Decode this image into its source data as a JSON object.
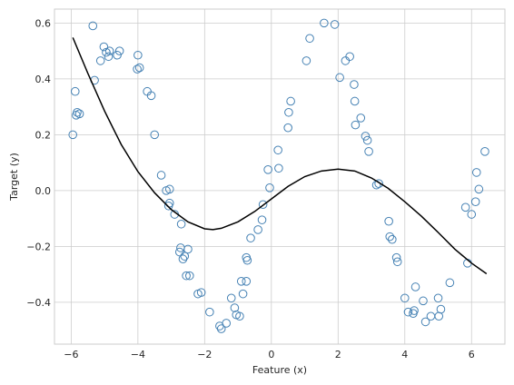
{
  "chart_data": {
    "type": "scatter",
    "title": "",
    "xlabel": "Feature (x)",
    "ylabel": "Target (y)",
    "xlim": [
      -6.5,
      7.0
    ],
    "ylim": [
      -0.55,
      0.65
    ],
    "xticks": [
      -6,
      -4,
      -2,
      0,
      2,
      4,
      6
    ],
    "yticks": [
      -0.4,
      -0.2,
      0.0,
      0.2,
      0.4,
      0.6
    ],
    "xtick_labels": [
      "−6",
      "−4",
      "−2",
      "0",
      "2",
      "4",
      "6"
    ],
    "ytick_labels": [
      "−0.4",
      "−0.2",
      "0.0",
      "0.2",
      "0.4",
      "0.6"
    ],
    "grid": true,
    "legend": "none",
    "colors": {
      "points": "#4682b4",
      "line": "#000000",
      "grid": "#cccccc",
      "frame": "#cccccc"
    },
    "series": [
      {
        "kind": "scatter",
        "marker": "open-circle",
        "points": [
          [
            -5.95,
            0.2
          ],
          [
            -5.88,
            0.355
          ],
          [
            -5.85,
            0.27
          ],
          [
            -5.82,
            0.28
          ],
          [
            -5.75,
            0.275
          ],
          [
            -5.35,
            0.59
          ],
          [
            -5.3,
            0.395
          ],
          [
            -5.12,
            0.465
          ],
          [
            -5.02,
            0.515
          ],
          [
            -4.95,
            0.495
          ],
          [
            -4.88,
            0.48
          ],
          [
            -4.85,
            0.5
          ],
          [
            -4.62,
            0.485
          ],
          [
            -4.55,
            0.5
          ],
          [
            -4.0,
            0.485
          ],
          [
            -4.02,
            0.435
          ],
          [
            -3.95,
            0.44
          ],
          [
            -3.72,
            0.355
          ],
          [
            -3.6,
            0.34
          ],
          [
            -3.5,
            0.2
          ],
          [
            -3.3,
            0.055
          ],
          [
            -3.15,
            0.0
          ],
          [
            -3.05,
            0.005
          ],
          [
            -3.05,
            -0.045
          ],
          [
            -3.08,
            -0.055
          ],
          [
            -2.9,
            -0.085
          ],
          [
            -2.7,
            -0.12
          ],
          [
            -2.72,
            -0.205
          ],
          [
            -2.75,
            -0.22
          ],
          [
            -2.6,
            -0.235
          ],
          [
            -2.65,
            -0.245
          ],
          [
            -2.5,
            -0.21
          ],
          [
            -2.55,
            -0.305
          ],
          [
            -2.45,
            -0.305
          ],
          [
            -2.2,
            -0.37
          ],
          [
            -2.1,
            -0.365
          ],
          [
            -1.85,
            -0.435
          ],
          [
            -1.55,
            -0.485
          ],
          [
            -1.5,
            -0.495
          ],
          [
            -1.35,
            -0.475
          ],
          [
            -1.2,
            -0.385
          ],
          [
            -1.1,
            -0.42
          ],
          [
            -1.05,
            -0.445
          ],
          [
            -0.95,
            -0.45
          ],
          [
            -0.9,
            -0.325
          ],
          [
            -0.85,
            -0.37
          ],
          [
            -0.75,
            -0.325
          ],
          [
            -0.75,
            -0.24
          ],
          [
            -0.72,
            -0.25
          ],
          [
            -0.62,
            -0.17
          ],
          [
            -0.4,
            -0.14
          ],
          [
            -0.28,
            -0.105
          ],
          [
            -0.25,
            -0.05
          ],
          [
            -0.1,
            0.075
          ],
          [
            -0.05,
            0.01
          ],
          [
            0.2,
            0.145
          ],
          [
            0.22,
            0.08
          ],
          [
            0.5,
            0.225
          ],
          [
            0.52,
            0.28
          ],
          [
            0.58,
            0.32
          ],
          [
            1.05,
            0.465
          ],
          [
            1.15,
            0.545
          ],
          [
            1.58,
            0.6
          ],
          [
            1.9,
            0.595
          ],
          [
            2.05,
            0.405
          ],
          [
            2.22,
            0.465
          ],
          [
            2.35,
            0.48
          ],
          [
            2.48,
            0.38
          ],
          [
            2.5,
            0.32
          ],
          [
            2.52,
            0.235
          ],
          [
            2.68,
            0.26
          ],
          [
            2.82,
            0.195
          ],
          [
            2.88,
            0.18
          ],
          [
            2.92,
            0.14
          ],
          [
            3.15,
            0.02
          ],
          [
            3.22,
            0.025
          ],
          [
            3.52,
            -0.11
          ],
          [
            3.55,
            -0.165
          ],
          [
            3.62,
            -0.175
          ],
          [
            3.75,
            -0.24
          ],
          [
            3.78,
            -0.255
          ],
          [
            4.0,
            -0.385
          ],
          [
            4.1,
            -0.435
          ],
          [
            4.25,
            -0.44
          ],
          [
            4.28,
            -0.43
          ],
          [
            4.32,
            -0.345
          ],
          [
            4.55,
            -0.395
          ],
          [
            4.62,
            -0.47
          ],
          [
            4.78,
            -0.45
          ],
          [
            5.0,
            -0.385
          ],
          [
            5.02,
            -0.45
          ],
          [
            5.08,
            -0.425
          ],
          [
            5.35,
            -0.33
          ],
          [
            5.82,
            -0.06
          ],
          [
            5.88,
            -0.26
          ],
          [
            6.0,
            -0.085
          ],
          [
            6.12,
            -0.04
          ],
          [
            6.15,
            0.065
          ],
          [
            6.22,
            0.005
          ],
          [
            6.4,
            0.14
          ]
        ]
      },
      {
        "kind": "line",
        "points": [
          [
            -5.95,
            0.548
          ],
          [
            -5.5,
            0.42
          ],
          [
            -5.0,
            0.285
          ],
          [
            -4.5,
            0.165
          ],
          [
            -4.0,
            0.068
          ],
          [
            -3.5,
            -0.008
          ],
          [
            -3.0,
            -0.068
          ],
          [
            -2.5,
            -0.112
          ],
          [
            -2.0,
            -0.137
          ],
          [
            -1.75,
            -0.14
          ],
          [
            -1.5,
            -0.135
          ],
          [
            -1.0,
            -0.112
          ],
          [
            -0.5,
            -0.075
          ],
          [
            0.0,
            -0.03
          ],
          [
            0.5,
            0.015
          ],
          [
            1.0,
            0.05
          ],
          [
            1.5,
            0.07
          ],
          [
            2.0,
            0.077
          ],
          [
            2.5,
            0.07
          ],
          [
            3.0,
            0.045
          ],
          [
            3.5,
            0.008
          ],
          [
            4.0,
            -0.04
          ],
          [
            4.5,
            -0.092
          ],
          [
            5.0,
            -0.15
          ],
          [
            5.5,
            -0.21
          ],
          [
            6.0,
            -0.26
          ],
          [
            6.45,
            -0.298
          ]
        ]
      }
    ]
  }
}
